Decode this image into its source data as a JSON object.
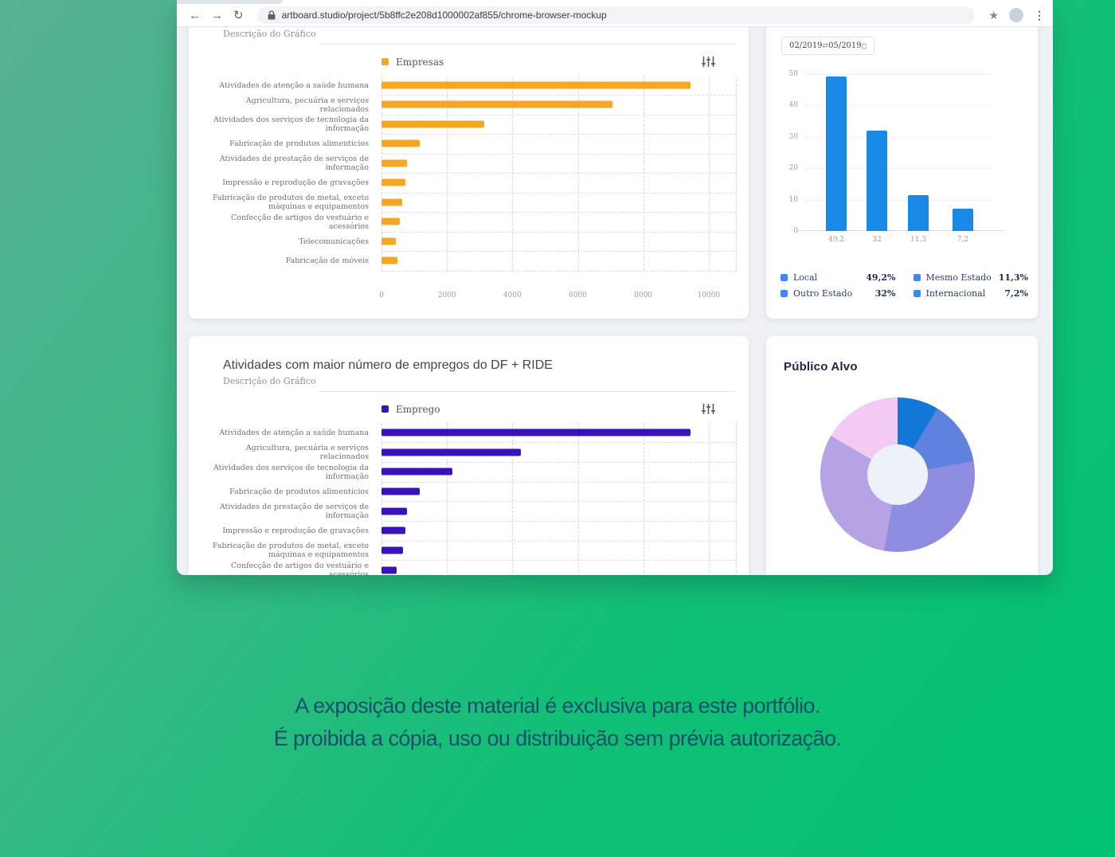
{
  "browser": {
    "url": "artboard.studio/project/5b8ffc2e208d1000002af855/chrome-browser-mockup",
    "icons": [
      "back-arrow-icon",
      "forward-arrow-icon",
      "reload-icon",
      "lock-icon",
      "star-icon",
      "avatar",
      "kebab-menu-icon"
    ]
  },
  "caption": {
    "line1": "A exposição deste material é exclusiva para este portfólio.",
    "line2": "É proibida a cópia, uso ou distribuição sem prévia autorização."
  },
  "colors": {
    "background_green_top": "#58B193",
    "background_green_bottom": "#00C172",
    "content_background": "#EDF1F6",
    "empresas_orange": "#F5A623",
    "emprego_indigo": "#3A12BD",
    "origem_bar_blue": "#1989E8",
    "origem_legend_blue": "#4285F4"
  },
  "chart_data": [
    {
      "id": "empresas",
      "type": "bar",
      "orientation": "horizontal",
      "subtitle": "Descrição do Gráfico",
      "legend": [
        {
          "label": "Empresas",
          "color": "#F5A623"
        }
      ],
      "categories": [
        "Atividades de atenção a saúde humana",
        "Agricultura, pecuária e serviços relacionados",
        "Atividades dos serviços de tecnologia da informação",
        "Fabricação de produtos alimentícios",
        "Atividades de prestação de serviços de informação",
        "Impressão e reprodução de gravações",
        "Fabricação de produtos de metal, exceto máquinas e equipamentos",
        "Confecção de artigos do vestuário e acessórios",
        "Telecomunicações",
        "Fabricação de móveis"
      ],
      "values": [
        9450,
        7050,
        3150,
        1170,
        780,
        730,
        630,
        560,
        440,
        490
      ],
      "xlim": [
        0,
        10000
      ],
      "xticks": [
        0,
        2000,
        4000,
        6000,
        8000,
        10000
      ],
      "bar_color": "#F5A623",
      "grid": "dashed"
    },
    {
      "id": "origem",
      "type": "bar",
      "orientation": "vertical",
      "date_range": {
        "start": "02/2019",
        "end": "05/2019"
      },
      "categories": [
        "49,2",
        "32",
        "11,3",
        "7,2"
      ],
      "values": [
        49.2,
        32,
        11.3,
        7.2
      ],
      "ylim": [
        0,
        50
      ],
      "yticks": [
        0,
        10,
        20,
        30,
        40,
        50
      ],
      "bar_color": "#1989E8",
      "legend_color": "#4285F4",
      "legend_position": "bottom",
      "legend": [
        {
          "label": "Local",
          "value": "49,2%"
        },
        {
          "label": "Mesmo Estado",
          "value": "11,3%"
        },
        {
          "label": "Outro Estado",
          "value": "32%"
        },
        {
          "label": "Internacional",
          "value": "7,2%"
        }
      ]
    },
    {
      "id": "emprego",
      "type": "bar",
      "orientation": "horizontal",
      "title": "Atividades com maior número de empregos do DF + RIDE",
      "subtitle": "Descrição do Gráfico",
      "legend": [
        {
          "label": "Emprego",
          "color": "#3A12BD"
        }
      ],
      "categories": [
        "Atividades de atenção a saúde humana",
        "Agricultura, pecuária e serviços relacionados",
        "Atividades dos serviços de tecnologia da informação",
        "Fabricação de produtos alimentícios",
        "Atividades de prestação de serviços de informação",
        "Impressão e reprodução de gravações",
        "Fabricação de produtos de metal, exceto máquinas e equipamentos",
        "Confecção de artigos do vestuário e acessórios"
      ],
      "values": [
        9450,
        4250,
        2170,
        1170,
        780,
        730,
        660,
        460
      ],
      "xlim": [
        0,
        10000
      ],
      "bar_color": "#3A12BD",
      "grid": "dashed"
    },
    {
      "id": "publico_alvo",
      "type": "pie",
      "title": "Público Alvo",
      "donut": true,
      "hole_color": "#ECF2F7",
      "segments": [
        {
          "color": "#1277D8",
          "percent": 8.6
        },
        {
          "color": "#5E82DE",
          "percent": 13.6
        },
        {
          "color": "#8F8DE2",
          "percent": 30.6
        },
        {
          "color": "#B5A3E6",
          "percent": 30.6
        },
        {
          "color": "#F3CAF3",
          "percent": 16.6
        }
      ]
    }
  ]
}
